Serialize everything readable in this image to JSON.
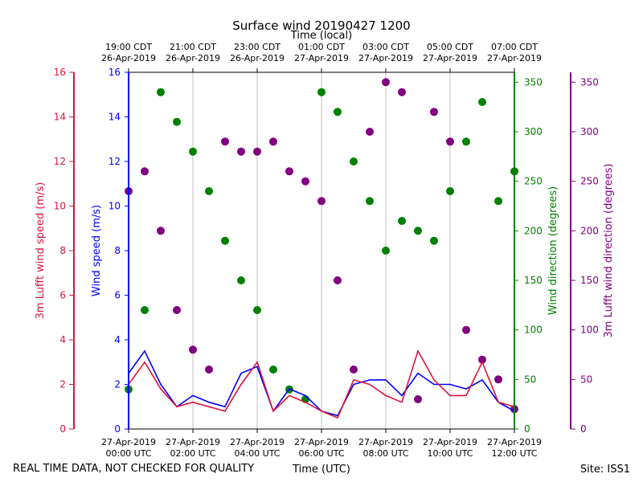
{
  "title": "Surface wind 20190427 1200",
  "top_axis_label": "Time (local)",
  "bottom_axis_label": "Time (UTC)",
  "footer_left": "REAL TIME DATA, NOT CHECKED FOR QUALITY",
  "footer_right": "Site: ISS1",
  "colors": {
    "lufft_speed": "#dc143c",
    "wind_speed": "#0000ff",
    "wind_direction": "#008000",
    "lufft_direction": "#800080"
  },
  "chart_data": {
    "type": "scatter",
    "title": "Surface wind 20190427 1200",
    "x_range_utc": [
      "27-Apr-2019 00:00",
      "27-Apr-2019 12:00"
    ],
    "grid": true,
    "bottom_ticks": [
      {
        "date": "27-Apr-2019",
        "time": "00:00 UTC"
      },
      {
        "date": "27-Apr-2019",
        "time": "02:00 UTC"
      },
      {
        "date": "27-Apr-2019",
        "time": "04:00 UTC"
      },
      {
        "date": "27-Apr-2019",
        "time": "06:00 UTC"
      },
      {
        "date": "27-Apr-2019",
        "time": "08:00 UTC"
      },
      {
        "date": "27-Apr-2019",
        "time": "10:00 UTC"
      },
      {
        "date": "27-Apr-2019",
        "time": "12:00 UTC"
      }
    ],
    "top_ticks": [
      {
        "time": "19:00 CDT",
        "date": "26-Apr-2019"
      },
      {
        "time": "21:00 CDT",
        "date": "26-Apr-2019"
      },
      {
        "time": "23:00 CDT",
        "date": "26-Apr-2019"
      },
      {
        "time": "01:00 CDT",
        "date": "27-Apr-2019"
      },
      {
        "time": "03:00 CDT",
        "date": "27-Apr-2019"
      },
      {
        "time": "05:00 CDT",
        "date": "27-Apr-2019"
      },
      {
        "time": "07:00 CDT",
        "date": "27-Apr-2019"
      }
    ],
    "axes": {
      "lufft_speed": {
        "label": "3m Lufft wind speed (m/s)",
        "range": [
          0,
          16
        ],
        "ticks": [
          0,
          2,
          4,
          6,
          8,
          10,
          12,
          14,
          16
        ]
      },
      "wind_speed": {
        "label": "Wind speed (m/s)",
        "range": [
          0,
          16
        ],
        "ticks": [
          0,
          2,
          4,
          6,
          8,
          10,
          12,
          14,
          16
        ]
      },
      "wind_direction": {
        "label": "Wind direction (degrees)",
        "range": [
          0,
          360
        ],
        "ticks": [
          0,
          50,
          100,
          150,
          200,
          250,
          300,
          350
        ]
      },
      "lufft_direction": {
        "label": "3m Lufft wind direction (degrees)",
        "range": [
          0,
          360
        ],
        "ticks": [
          0,
          50,
          100,
          150,
          200,
          250,
          300,
          350
        ]
      }
    },
    "series": [
      {
        "key": "wind_speed",
        "type": "line",
        "x_hours": [
          0,
          0.5,
          1,
          1.5,
          2,
          2.5,
          3,
          3.5,
          4,
          4.5,
          5,
          5.5,
          6,
          6.5,
          7,
          7.5,
          8,
          8.5,
          9,
          9.5,
          10,
          10.5,
          11,
          11.5,
          12
        ],
        "values": [
          2.5,
          3.5,
          2.0,
          1.0,
          1.5,
          1.2,
          1.0,
          2.5,
          2.8,
          0.8,
          1.8,
          1.5,
          0.8,
          0.6,
          2.0,
          2.2,
          2.2,
          1.5,
          2.5,
          2.0,
          2.0,
          1.8,
          2.2,
          1.2,
          0.8
        ]
      },
      {
        "key": "lufft_speed",
        "type": "line",
        "x_hours": [
          0,
          0.5,
          1,
          1.5,
          2,
          2.5,
          3,
          3.5,
          4,
          4.5,
          5,
          5.5,
          6,
          6.5,
          7,
          7.5,
          8,
          8.5,
          9,
          9.5,
          10,
          10.5,
          11,
          11.5,
          12
        ],
        "values": [
          2.0,
          3.0,
          1.8,
          1.0,
          1.2,
          1.0,
          0.8,
          2.0,
          3.0,
          0.8,
          1.5,
          1.2,
          0.8,
          0.5,
          2.2,
          2.0,
          1.5,
          1.2,
          3.5,
          2.2,
          1.5,
          1.5,
          3.0,
          1.2,
          1.0
        ]
      },
      {
        "key": "wind_direction",
        "type": "scatter",
        "x_hours": [
          0,
          0.5,
          1,
          1.5,
          2,
          2.5,
          3,
          3.5,
          4,
          4.5,
          5,
          5.5,
          6,
          6.5,
          7,
          7.5,
          8,
          8.5,
          9,
          9.5,
          10,
          10.5,
          11,
          11.5,
          12
        ],
        "values": [
          40,
          120,
          340,
          310,
          280,
          240,
          190,
          150,
          120,
          60,
          40,
          30,
          340,
          320,
          270,
          230,
          180,
          210,
          200,
          190,
          240,
          290,
          330,
          230,
          260
        ]
      },
      {
        "key": "lufft_direction",
        "type": "scatter",
        "x_hours": [
          0,
          0.5,
          1,
          1.5,
          2,
          2.5,
          3,
          3.5,
          4,
          4.5,
          5,
          5.5,
          6,
          6.5,
          7,
          7.5,
          8,
          8.5,
          9,
          9.5,
          10,
          10.5,
          11,
          11.5,
          12
        ],
        "values": [
          240,
          260,
          200,
          120,
          80,
          60,
          290,
          280,
          280,
          290,
          260,
          250,
          230,
          150,
          60,
          300,
          350,
          340,
          30,
          320,
          290,
          100,
          70,
          50,
          20
        ]
      }
    ]
  }
}
